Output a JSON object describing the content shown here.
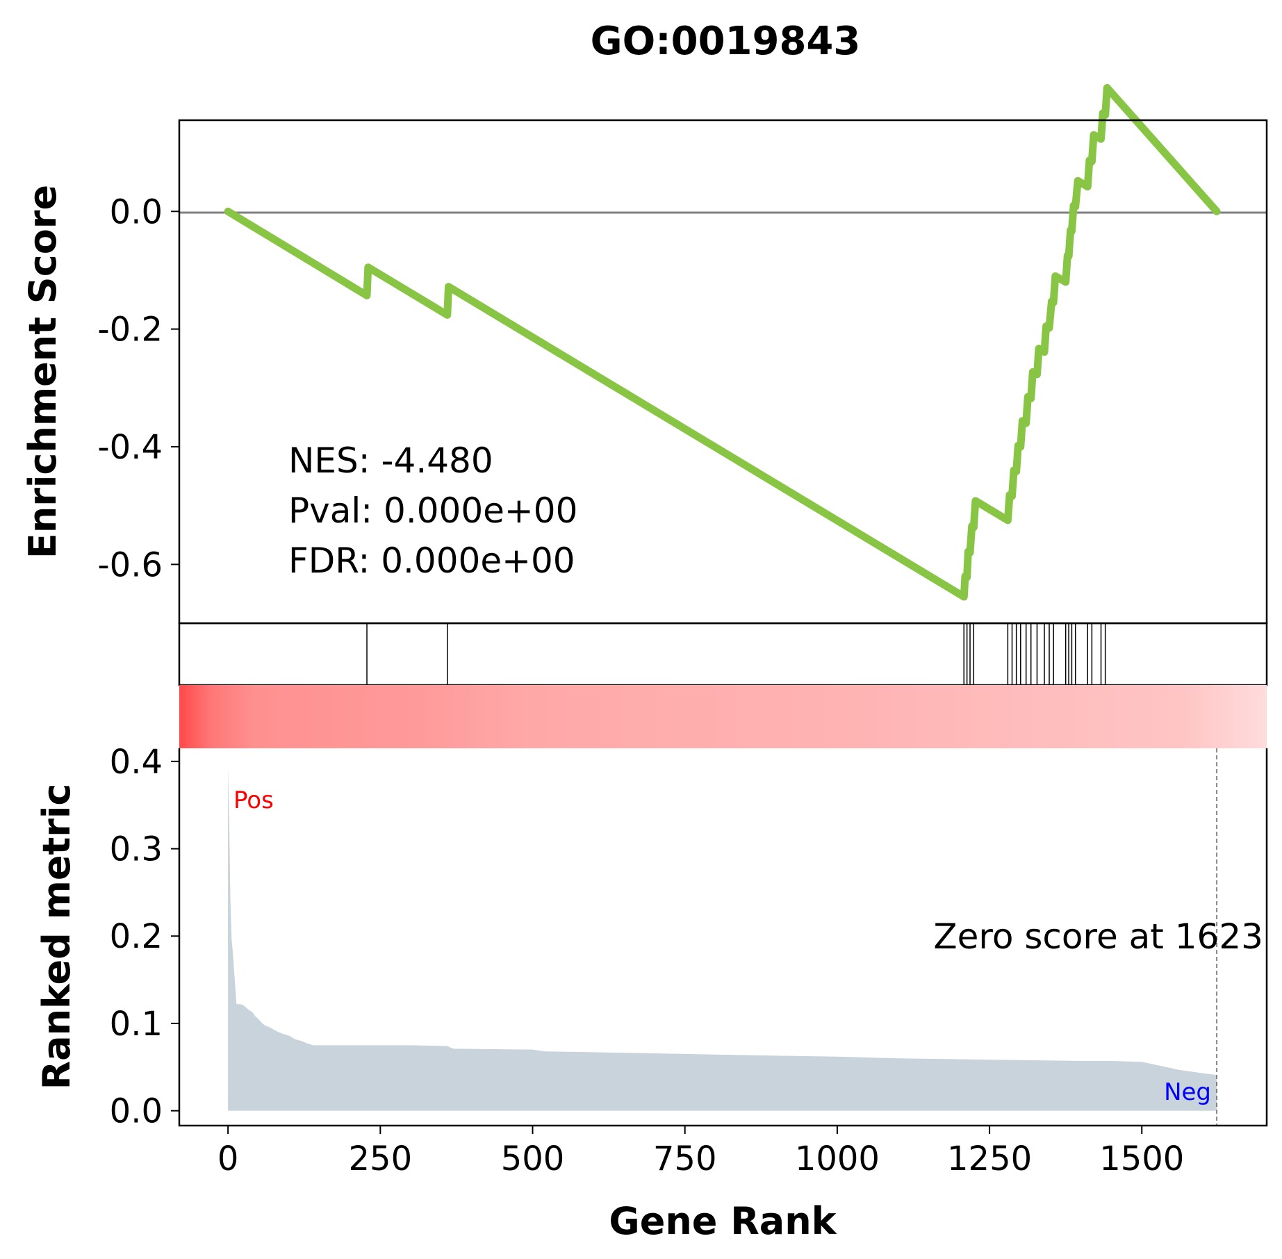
{
  "title": "GO:0019843",
  "chart_data": [
    {
      "type": "line",
      "panel": "enrichment-score",
      "ylabel": "Enrichment Score",
      "ylim": [
        -0.7,
        0.155
      ],
      "yticks": [
        "0.0",
        "-0.2",
        "-0.4",
        "-0.6"
      ],
      "ytick_values": [
        0.0,
        -0.2,
        -0.4,
        -0.6
      ],
      "zero_line": true,
      "line_color": "#88c544",
      "x": [
        0,
        228,
        230,
        360,
        362,
        1208,
        1210,
        1213,
        1215,
        1218,
        1221,
        1224,
        1227,
        1280,
        1283,
        1287,
        1290,
        1294,
        1297,
        1301,
        1304,
        1310,
        1313,
        1318,
        1321,
        1328,
        1331,
        1340,
        1343,
        1348,
        1352,
        1355,
        1358,
        1375,
        1378,
        1380,
        1383,
        1385,
        1388,
        1391,
        1395,
        1411,
        1414,
        1418,
        1421,
        1433,
        1436,
        1440,
        1443,
        1623
      ],
      "y": [
        0.0,
        -0.143,
        -0.095,
        -0.176,
        -0.128,
        -0.655,
        -0.62,
        -0.622,
        -0.578,
        -0.58,
        -0.535,
        -0.537,
        -0.492,
        -0.525,
        -0.482,
        -0.484,
        -0.44,
        -0.442,
        -0.398,
        -0.4,
        -0.356,
        -0.36,
        -0.315,
        -0.318,
        -0.273,
        -0.277,
        -0.233,
        -0.239,
        -0.195,
        -0.198,
        -0.153,
        -0.155,
        -0.11,
        -0.12,
        -0.075,
        -0.076,
        -0.032,
        -0.034,
        0.01,
        0.008,
        0.052,
        0.042,
        0.087,
        0.085,
        0.13,
        0.123,
        0.167,
        0.164,
        0.21,
        0.0
      ],
      "annotation": [
        "NES: -4.480",
        "Pval: 0.000e+00",
        "FDR: 0.000e+00"
      ]
    },
    {
      "type": "rug",
      "panel": "gene-hits",
      "positions": [
        228,
        360,
        1208,
        1213,
        1218,
        1224,
        1280,
        1287,
        1294,
        1301,
        1310,
        1318,
        1328,
        1340,
        1348,
        1355,
        1375,
        1380,
        1385,
        1391,
        1411,
        1418,
        1433,
        1440
      ]
    },
    {
      "type": "area",
      "panel": "ranked-metric",
      "xlabel": "Gene Rank",
      "ylabel": "Ranked metric",
      "xlim": [
        -80,
        1705
      ],
      "ylim": [
        -0.017,
        0.415
      ],
      "xticks": [
        "0",
        "250",
        "500",
        "750",
        "1000",
        "1250",
        "1500"
      ],
      "xtick_values": [
        0,
        250,
        500,
        750,
        1000,
        1250,
        1500
      ],
      "yticks": [
        "0.0",
        "0.1",
        "0.2",
        "0.3",
        "0.4"
      ],
      "ytick_values": [
        0.0,
        0.1,
        0.2,
        0.3,
        0.4
      ],
      "fill_color": "#c8d3dc",
      "x": [
        0,
        2,
        4,
        6,
        8,
        10,
        12,
        14,
        20,
        25,
        30,
        35,
        40,
        45,
        50,
        55,
        60,
        70,
        80,
        90,
        100,
        110,
        120,
        130,
        140,
        200,
        300,
        360,
        370,
        500,
        520,
        600,
        750,
        900,
        1000,
        1100,
        1200,
        1300,
        1400,
        1450,
        1500,
        1520,
        1540,
        1560,
        1580,
        1600,
        1623
      ],
      "y": [
        0.395,
        0.33,
        0.24,
        0.195,
        0.18,
        0.16,
        0.14,
        0.122,
        0.122,
        0.121,
        0.118,
        0.115,
        0.113,
        0.108,
        0.105,
        0.101,
        0.098,
        0.095,
        0.091,
        0.088,
        0.086,
        0.082,
        0.08,
        0.077,
        0.075,
        0.075,
        0.075,
        0.074,
        0.071,
        0.07,
        0.068,
        0.067,
        0.065,
        0.063,
        0.062,
        0.06,
        0.059,
        0.058,
        0.057,
        0.057,
        0.056,
        0.053,
        0.05,
        0.047,
        0.045,
        0.043,
        0.041
      ],
      "pos_label": "Pos",
      "neg_label": "Neg",
      "pos_color": "#ff0000",
      "neg_color": "#0000ff",
      "zero_score_label": "Zero score at 1623",
      "zero_score_rank": 1623
    }
  ]
}
